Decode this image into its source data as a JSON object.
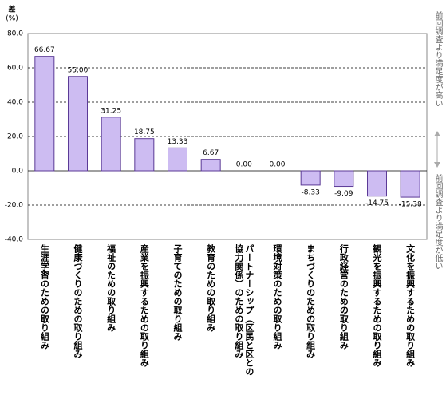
{
  "chart_data": {
    "type": "bar",
    "ylabel": "差",
    "yunit": "(%)",
    "annotation_top": "前回調査より満足度が高い",
    "annotation_bottom": "前回調査より満足度が低い",
    "categories": [
      "生涯学習のための取り組み",
      "健康づくりのための取り組み",
      "福祉のための取り組み",
      "産業を振興するための取り組み",
      "子育てのための取り組み",
      "教育のための取り組み",
      "パートナーシップ（区民と区との協力関係）のための取り組み",
      "環境対策のための取り組み",
      "まちづくりのための取り組み",
      "行政経営のための取り組み",
      "観光を振興するための取り組み",
      "文化を振興するための取り組み"
    ],
    "values": [
      66.67,
      55,
      31.25,
      18.75,
      13.33,
      6.67,
      0,
      0,
      -8.33,
      -9.09,
      -14.75,
      -15.38
    ],
    "value_labels": [
      "66.67",
      "55.00",
      "31.25",
      "18.75",
      "13.33",
      "6.67",
      "0.00",
      "0.00",
      "-8.33",
      "-9.09",
      "-14.75",
      "-15.38"
    ],
    "color": "#cdbcf2",
    "stroke": "#5b3a96",
    "ylim": [
      -40,
      80
    ],
    "yticks": [
      {
        "value": -40,
        "label": "-40.0"
      },
      {
        "value": -20,
        "label": "-20.0"
      },
      {
        "value": 0,
        "label": "0.0"
      },
      {
        "value": 20,
        "label": "20.0"
      },
      {
        "value": 40,
        "label": "40.0"
      },
      {
        "value": 60,
        "label": "60.0"
      },
      {
        "value": 80,
        "label": "80.0"
      }
    ],
    "grid": true
  }
}
